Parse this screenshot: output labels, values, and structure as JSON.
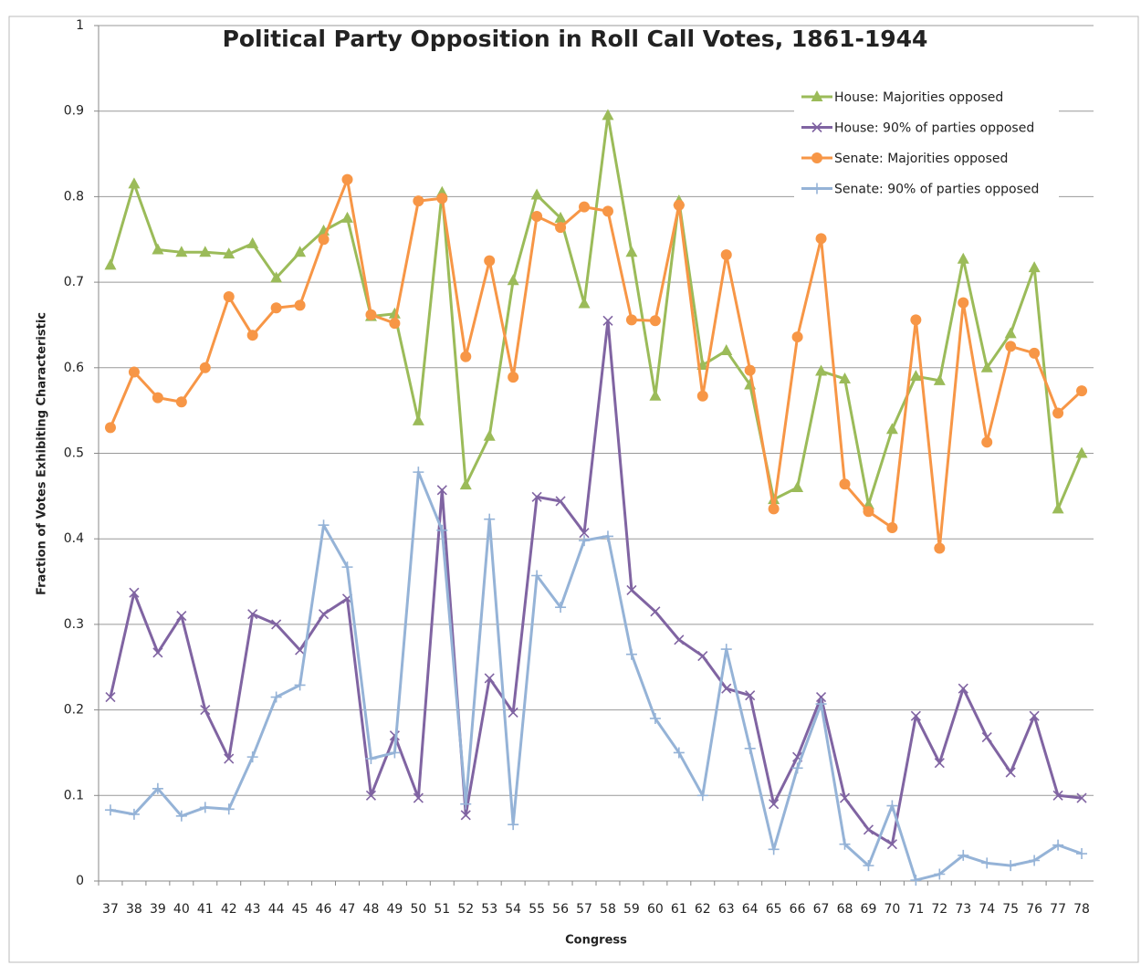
{
  "chart_data": {
    "type": "line",
    "title": "Political Party Opposition in Roll Call Votes, 1861-1944",
    "x_label": "Congress",
    "y_label": "Fraction of Votes Exhibiting Characteristic",
    "categories": [
      "37",
      "38",
      "39",
      "40",
      "41",
      "42",
      "43",
      "44",
      "45",
      "46",
      "47",
      "48",
      "49",
      "50",
      "51",
      "52",
      "53",
      "54",
      "55",
      "56",
      "57",
      "58",
      "59",
      "60",
      "61",
      "62",
      "63",
      "64",
      "65",
      "66",
      "67",
      "68",
      "69",
      "70",
      "71",
      "72",
      "73",
      "74",
      "75",
      "76",
      "77",
      "78"
    ],
    "ylim": [
      0,
      1
    ],
    "yticks": [
      0,
      0.1,
      0.2,
      0.3,
      0.4,
      0.5,
      0.6,
      0.7,
      0.8,
      0.9,
      1
    ],
    "grid": true,
    "legend": "top-right",
    "series": [
      {
        "name": "House: Majorities opposed",
        "color": "#9bbb59",
        "marker": "triangle",
        "values": [
          0.72,
          0.815,
          0.738,
          0.735,
          0.735,
          0.733,
          0.745,
          0.705,
          0.735,
          0.76,
          0.775,
          0.66,
          0.663,
          0.538,
          0.805,
          0.463,
          0.52,
          0.702,
          0.802,
          0.775,
          0.675,
          0.895,
          0.735,
          0.567,
          0.795,
          0.603,
          0.62,
          0.58,
          0.446,
          0.46,
          0.596,
          0.587,
          0.44,
          0.528,
          0.59,
          0.585,
          0.727,
          0.6,
          0.64,
          0.717,
          0.435,
          0.5
        ]
      },
      {
        "name": "House: 90% of parties opposed",
        "color": "#8064a2",
        "marker": "x",
        "values": [
          0.215,
          0.337,
          0.267,
          0.31,
          0.2,
          0.143,
          0.312,
          0.3,
          0.27,
          0.312,
          0.33,
          0.1,
          0.17,
          0.097,
          0.457,
          0.077,
          0.237,
          0.197,
          0.449,
          0.444,
          0.407,
          0.655,
          0.34,
          0.315,
          0.282,
          0.263,
          0.225,
          0.217,
          0.09,
          0.145,
          0.215,
          0.097,
          0.06,
          0.043,
          0.193,
          0.138,
          0.225,
          0.168,
          0.127,
          0.193,
          0.1,
          0.097
        ]
      },
      {
        "name": "Senate: Majorities opposed",
        "color": "#f79646",
        "marker": "circle",
        "values": [
          0.53,
          0.595,
          0.565,
          0.56,
          0.6,
          0.683,
          0.638,
          0.67,
          0.673,
          0.75,
          0.82,
          0.662,
          0.652,
          0.795,
          0.798,
          0.613,
          0.725,
          0.589,
          0.777,
          0.764,
          0.788,
          0.783,
          0.656,
          0.655,
          0.79,
          0.567,
          0.732,
          0.597,
          0.435,
          0.636,
          0.751,
          0.464,
          0.432,
          0.413,
          0.656,
          0.389,
          0.676,
          0.513,
          0.625,
          0.617,
          0.547,
          0.573
        ]
      },
      {
        "name": "Senate: 90% of parties opposed",
        "color": "#95b3d7",
        "marker": "plus",
        "values": [
          0.083,
          0.078,
          0.108,
          0.076,
          0.086,
          0.084,
          0.145,
          0.215,
          0.229,
          0.416,
          0.367,
          0.143,
          0.15,
          0.478,
          0.41,
          0.09,
          0.423,
          0.066,
          0.357,
          0.32,
          0.398,
          0.403,
          0.265,
          0.19,
          0.15,
          0.1,
          0.271,
          0.155,
          0.037,
          0.132,
          0.207,
          0.043,
          0.018,
          0.088,
          0.001,
          0.008,
          0.03,
          0.021,
          0.018,
          0.024,
          0.042,
          0.032
        ]
      }
    ]
  }
}
